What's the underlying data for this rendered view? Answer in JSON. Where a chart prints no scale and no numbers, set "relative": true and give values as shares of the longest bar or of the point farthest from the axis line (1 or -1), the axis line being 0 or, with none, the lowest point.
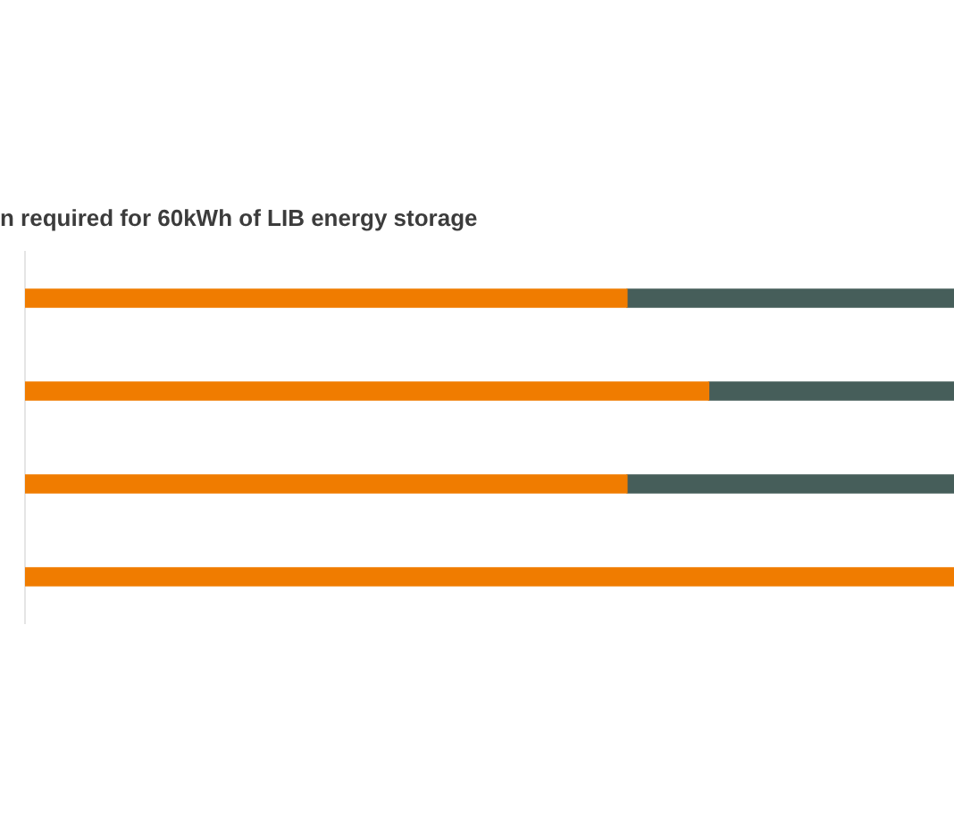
{
  "chart_data": {
    "type": "bar",
    "title": "n required for 60kWh of LIB energy storage",
    "orientation": "horizontal",
    "stacked": true,
    "relative": true,
    "categories": [
      null,
      null,
      null,
      null
    ],
    "series": [
      {
        "color": "#f07c00",
        "values": [
          0.648,
          0.736,
          0.648,
          1
        ]
      },
      {
        "color": "#465e5a",
        "values": [
          0.352,
          0.264,
          0.352,
          null
        ]
      }
    ]
  }
}
